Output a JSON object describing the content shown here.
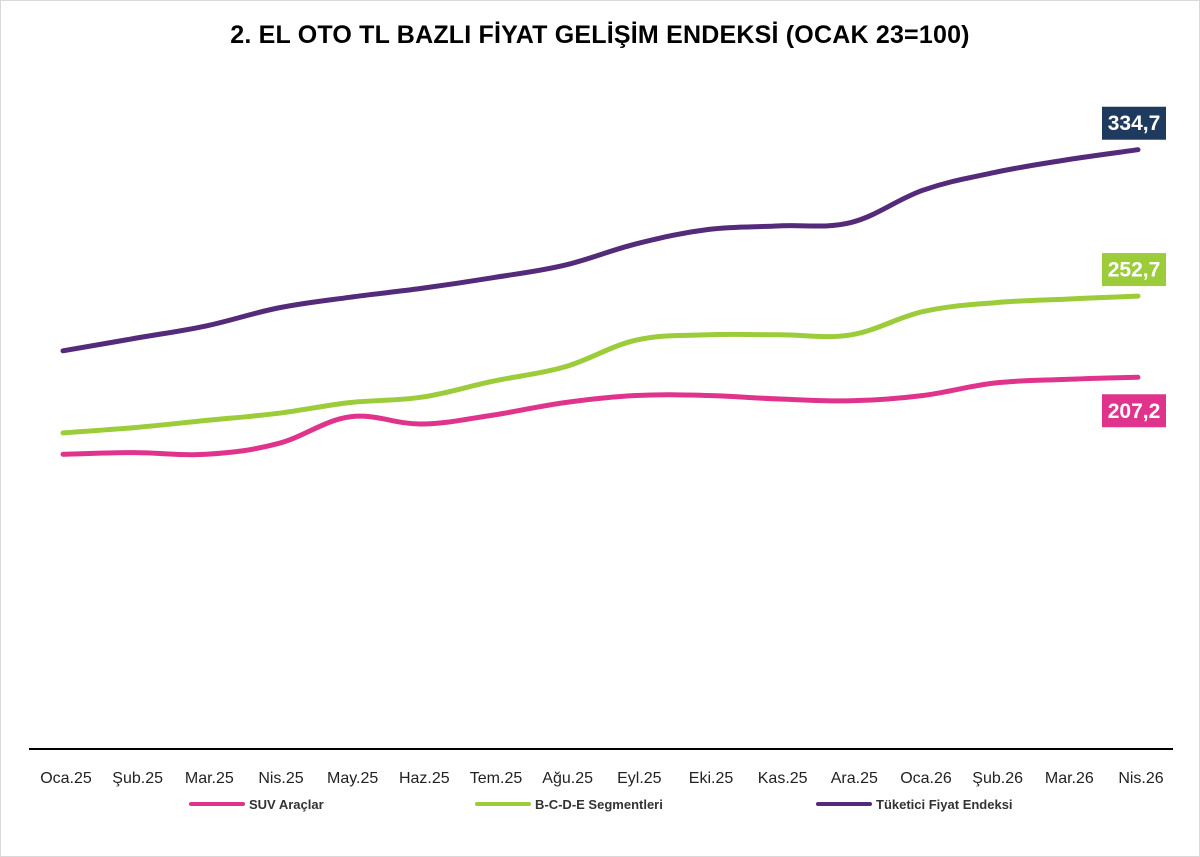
{
  "chart_data": {
    "type": "line",
    "title": "2. EL OTO TL BAZLI FİYAT GELİŞİM ENDEKSİ (OCAK 23=100)",
    "xlabel": "",
    "ylabel": "",
    "categories": [
      "Oca.25",
      "Şub.25",
      "Mar.25",
      "Nis.25",
      "May.25",
      "Haz.25",
      "Tem.25",
      "Ağu.25",
      "Eyl.25",
      "Eki.25",
      "Kas.25",
      "Ara.25",
      "Oca.26",
      "Şub.26",
      "Mar.26",
      "Nis.26"
    ],
    "series": [
      {
        "name": "SUV Araçlar",
        "color": "#e0348c",
        "values": [
          164,
          165,
          164,
          170,
          185,
          181,
          186,
          193,
          197,
          197,
          195,
          194,
          197,
          204,
          206,
          207.2
        ],
        "end_label": "207,2"
      },
      {
        "name": "B-C-D-E Segmentleri",
        "color": "#9ccc3a",
        "values": [
          176,
          179,
          183,
          187,
          193,
          196,
          205,
          213,
          228,
          231,
          231,
          231,
          244,
          249,
          251,
          252.7
        ],
        "end_label": "252,7"
      },
      {
        "name": "Tüketici Fiyat Endeksi",
        "color": "#542a7a",
        "values": [
          222,
          229,
          236,
          246,
          252,
          257,
          263,
          270,
          282,
          290,
          292,
          294,
          312,
          322,
          329,
          334.7
        ],
        "end_label": "334,7"
      }
    ],
    "label_colors": [
      "#e0348c",
      "#9ccc3a",
      "#1f3a5f"
    ],
    "ylim": [
      0,
      348
    ],
    "grid": false,
    "legend_position": "bottom"
  }
}
